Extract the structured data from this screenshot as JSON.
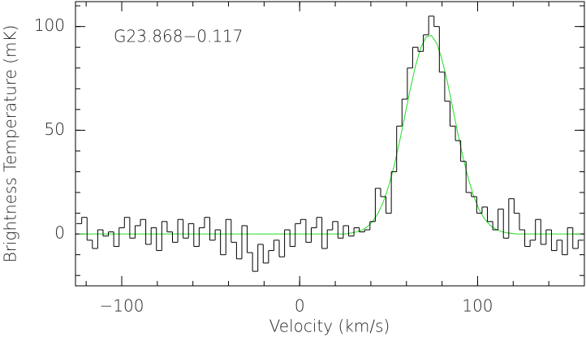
{
  "chart_data": {
    "type": "spectrum",
    "annotation": "G23.868−0.117",
    "x_label": "Velocity (km/s)",
    "y_label": "Brightness Temperature (mK)",
    "xlim": [
      -126,
      160
    ],
    "ylim": [
      -25,
      112
    ],
    "xticks": [
      {
        "value": -100,
        "label": "−100"
      },
      0,
      100
    ],
    "yticks": [
      0,
      50,
      100
    ],
    "xminorticks": [
      -120,
      -100,
      -80,
      -60,
      -40,
      -20,
      0,
      20,
      40,
      60,
      80,
      100,
      120,
      140,
      160
    ],
    "yminorticks": [
      -20,
      -10,
      0,
      10,
      20,
      30,
      40,
      50,
      60,
      70,
      80,
      90,
      100,
      110
    ],
    "channel_width": 3,
    "grid": false,
    "x": [
      -124,
      -121,
      -118,
      -115,
      -112,
      -109,
      -106,
      -103,
      -100,
      -97,
      -94,
      -91,
      -88,
      -85,
      -82,
      -79,
      -76,
      -73,
      -70,
      -67,
      -64,
      -61,
      -58,
      -55,
      -52,
      -49,
      -46,
      -43,
      -40,
      -37,
      -34,
      -31,
      -28,
      -25,
      -22,
      -19,
      -16,
      -13,
      -10,
      -7,
      -4,
      -1,
      2,
      5,
      8,
      11,
      14,
      17,
      20,
      23,
      26,
      29,
      32,
      35,
      38,
      41,
      44,
      47,
      50,
      53,
      56,
      59,
      62,
      65,
      68,
      71,
      74,
      77,
      80,
      83,
      86,
      89,
      92,
      95,
      98,
      101,
      104,
      107,
      110,
      113,
      116,
      119,
      122,
      125,
      128,
      131,
      134,
      137,
      140,
      143,
      146,
      149,
      152,
      155,
      158
    ],
    "series": [
      {
        "name": "spectrum",
        "color": "#000000",
        "style": "step",
        "values": [
          5,
          8,
          -3,
          -7,
          2,
          -1,
          1,
          -6,
          3,
          8,
          -2,
          4,
          7,
          -5,
          3,
          -8,
          6,
          1,
          -4,
          7,
          -2,
          5,
          -6,
          3,
          8,
          -3,
          2,
          -10,
          7,
          -4,
          -12,
          4,
          -9,
          -18,
          -5,
          -14,
          -8,
          -3,
          -11,
          2,
          -6,
          5,
          7,
          -4,
          3,
          8,
          -7,
          2,
          6,
          -2,
          4,
          -1,
          3,
          1,
          2,
          6,
          22,
          18,
          10,
          30,
          52,
          65,
          80,
          90,
          88,
          96,
          105,
          100,
          78,
          64,
          52,
          45,
          35,
          20,
          18,
          10,
          13,
          6,
          2,
          12,
          -2,
          17,
          10,
          2,
          -6,
          -3,
          7,
          -5,
          2,
          -8,
          -3,
          -10,
          3,
          -7,
          -3
        ]
      },
      {
        "name": "fit",
        "color": "#22dd22",
        "style": "line",
        "values": [
          0,
          0,
          0,
          0,
          0,
          0,
          0,
          0,
          0,
          0,
          0,
          0,
          0,
          0,
          0,
          0,
          0,
          0,
          0,
          0,
          0,
          0,
          0,
          0,
          0,
          0,
          0,
          0,
          0,
          0,
          0,
          0,
          0,
          0,
          0,
          0,
          0,
          0,
          0,
          0,
          0,
          0,
          0,
          0,
          0,
          0,
          0,
          0,
          0,
          0,
          0,
          0.5,
          1.0,
          1.9,
          3.5,
          6.0,
          9.9,
          15.4,
          23.0,
          32.6,
          44.0,
          56.5,
          69.2,
          80.7,
          89.7,
          94.9,
          95.7,
          92.0,
          84.1,
          73.3,
          60.8,
          48.0,
          36.2,
          26.0,
          17.7,
          11.5,
          7.1,
          4.2,
          2.4,
          1.3,
          0.6,
          0.3,
          0,
          0,
          0,
          0,
          0,
          0,
          0,
          0,
          0,
          0,
          0,
          0,
          0
        ]
      }
    ]
  }
}
